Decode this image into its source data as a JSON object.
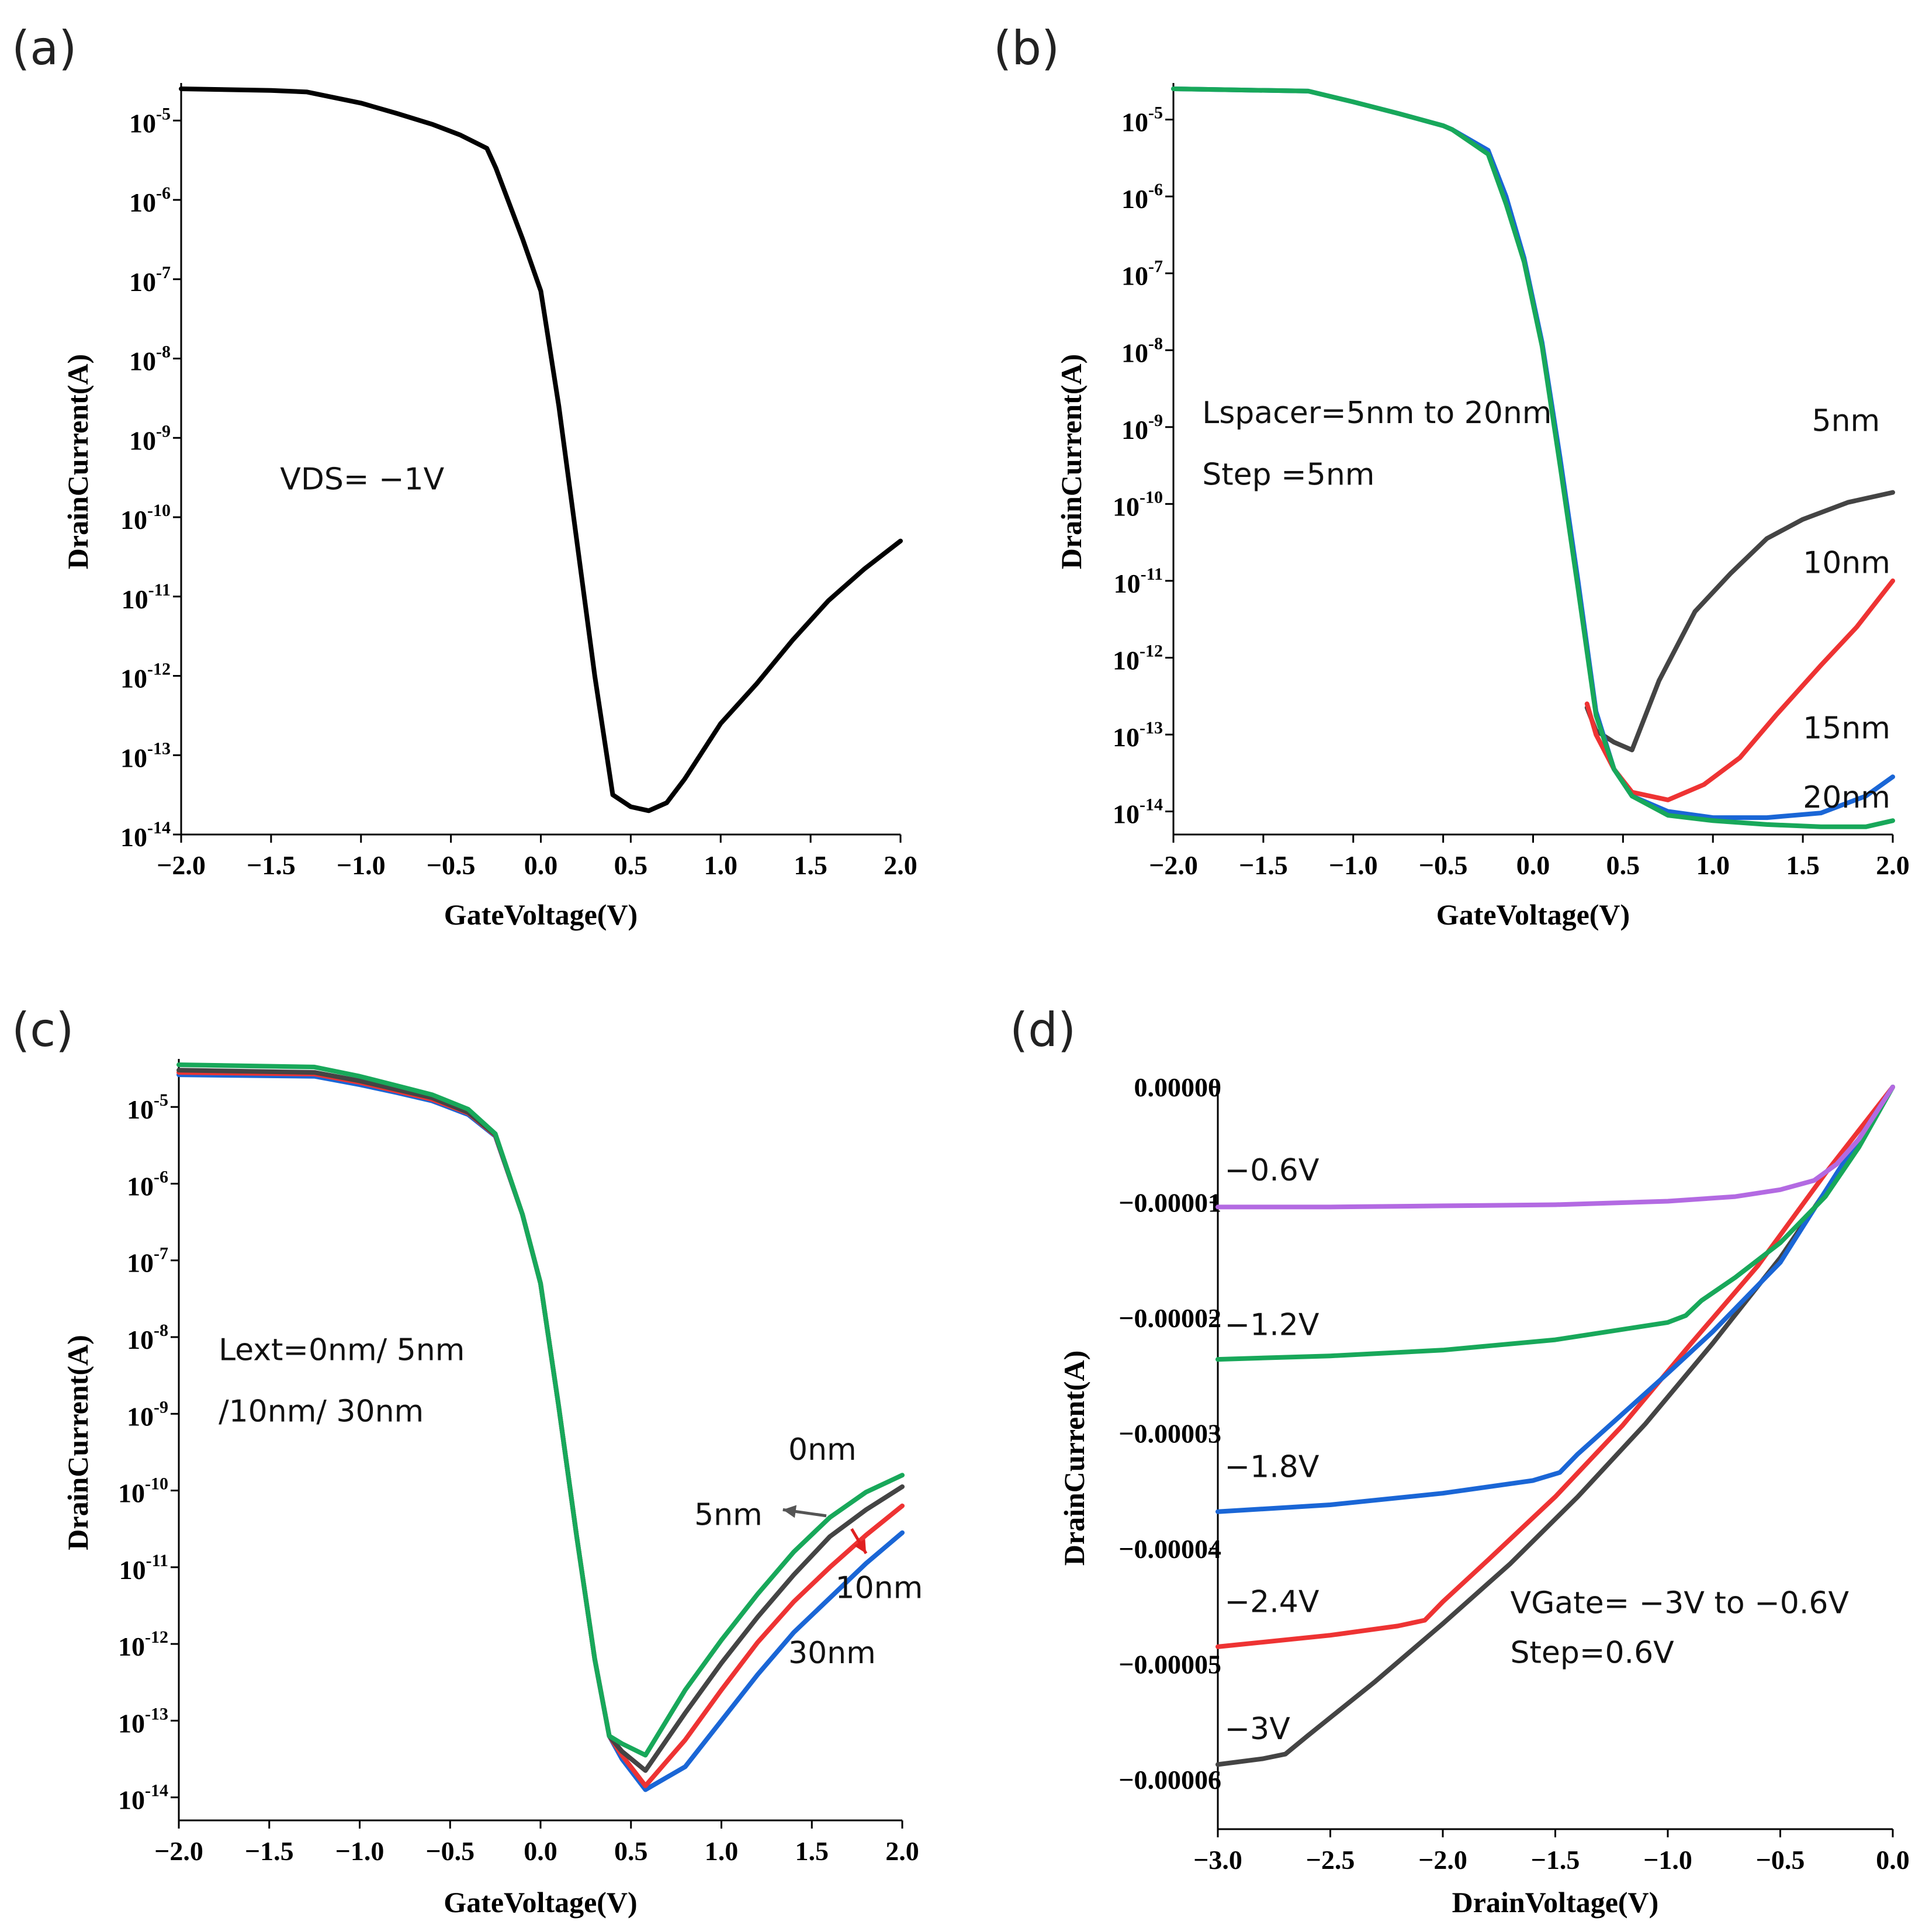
{
  "chart_data": [
    {
      "id": "a",
      "type": "line",
      "panel_label": "(a)",
      "xlabel": "GateVoltage(V)",
      "ylabel": "DrainCurrent(A)",
      "xlim": [
        -2.0,
        2.0
      ],
      "ylog": true,
      "ylim_exp": [
        -14,
        -4.6
      ],
      "xticks": [
        -2.0,
        -1.5,
        -1.0,
        -0.5,
        0.0,
        0.5,
        1.0,
        1.5,
        2.0
      ],
      "xtick_labels": [
        "−2.0",
        "−1.5",
        "−1.0",
        "−0.5",
        "0.0",
        "0.5",
        "1.0",
        "1.5",
        "2.0"
      ],
      "yticks_exp": [
        -5,
        -6,
        -7,
        -8,
        -9,
        -10,
        -11,
        -12,
        -13,
        -14
      ],
      "ytick_labels": [
        "10",
        "10",
        "10",
        "10",
        "10",
        "10",
        "10",
        "10",
        "10",
        "10"
      ],
      "ytick_exp_labels": [
        "-5",
        "-6",
        "-7",
        "-8",
        "-9",
        "-10",
        "-11",
        "-12",
        "-13",
        "-14"
      ],
      "annotations": [
        {
          "text": "VDS= −1V",
          "x": -1.45,
          "y": -9.65
        }
      ],
      "series": [
        {
          "name": "VDS=-1V",
          "color": "#000000",
          "x": [
            -2.0,
            -1.5,
            -1.3,
            -1.0,
            -0.8,
            -0.6,
            -0.45,
            -0.3,
            -0.25,
            -0.1,
            0.0,
            0.1,
            0.2,
            0.3,
            0.4,
            0.5,
            0.6,
            0.7,
            0.8,
            1.0,
            1.2,
            1.4,
            1.6,
            1.8,
            2.0
          ],
          "y": [
            -4.6,
            -4.62,
            -4.64,
            -4.78,
            -4.91,
            -5.05,
            -5.18,
            -5.35,
            -5.6,
            -6.5,
            -7.15,
            -8.6,
            -10.3,
            -12.0,
            -13.5,
            -13.65,
            -13.7,
            -13.6,
            -13.3,
            -12.6,
            -12.1,
            -11.55,
            -11.05,
            -10.65,
            -10.3
          ]
        }
      ]
    },
    {
      "id": "b",
      "type": "line",
      "panel_label": "(b)",
      "xlabel": "GateVoltage(V)",
      "ylabel": "DrainCurrent(A)",
      "xlim": [
        -2.0,
        2.0
      ],
      "ylog": true,
      "ylim_exp": [
        -14.3,
        -4.6
      ],
      "xticks": [
        -2.0,
        -1.5,
        -1.0,
        -0.5,
        0.0,
        0.5,
        1.0,
        1.5,
        2.0
      ],
      "xtick_labels": [
        "−2.0",
        "−1.5",
        "−1.0",
        "−0.5",
        "0.0",
        "0.5",
        "1.0",
        "1.5",
        "2.0"
      ],
      "yticks_exp": [
        -5,
        -6,
        -7,
        -8,
        -9,
        -10,
        -11,
        -12,
        -13,
        -14
      ],
      "ytick_labels": [
        "10",
        "10",
        "10",
        "10",
        "10",
        "10",
        "10",
        "10",
        "10",
        "10"
      ],
      "ytick_exp_labels": [
        "-5",
        "-6",
        "-7",
        "-8",
        "-9",
        "-10",
        "-11",
        "-12",
        "-13",
        "-14"
      ],
      "annotations": [
        {
          "text": "Lspacer=5nm to 20nm",
          "x": -1.84,
          "y": -8.95
        },
        {
          "text": "Step =5nm",
          "x": -1.84,
          "y": -9.75
        },
        {
          "text": "5nm",
          "x": 1.55,
          "y": -9.05
        },
        {
          "text": "10nm",
          "x": 1.5,
          "y": -10.9
        },
        {
          "text": "15nm",
          "x": 1.5,
          "y": -13.05
        },
        {
          "text": "20nm",
          "x": 1.5,
          "y": -13.95
        }
      ],
      "series": [
        {
          "name": "5nm",
          "color": "#444444",
          "x": [
            0.3,
            0.35,
            0.45,
            0.55,
            0.7,
            0.9,
            1.1,
            1.3,
            1.5,
            1.75,
            2.0
          ],
          "y": [
            -12.65,
            -12.95,
            -13.1,
            -13.2,
            -12.3,
            -11.4,
            -10.9,
            -10.45,
            -10.2,
            -9.98,
            -9.85
          ]
        },
        {
          "name": "10nm",
          "color": "#ee3333",
          "x": [
            0.3,
            0.35,
            0.45,
            0.55,
            0.75,
            0.95,
            1.15,
            1.35,
            1.6,
            1.8,
            2.0
          ],
          "y": [
            -12.6,
            -13.0,
            -13.45,
            -13.75,
            -13.85,
            -13.65,
            -13.3,
            -12.75,
            -12.1,
            -11.6,
            -11.0
          ]
        },
        {
          "name": "15nm",
          "color": "#1a66d6",
          "x": [
            -2.0,
            -1.25,
            -1.0,
            -0.75,
            -0.5,
            -0.45,
            -0.25,
            -0.15,
            -0.05,
            0.05,
            0.15,
            0.25,
            0.35,
            0.45,
            0.55,
            0.75,
            1.0,
            1.3,
            1.6,
            1.85,
            2.0
          ],
          "y": [
            -4.6,
            -4.63,
            -4.77,
            -4.92,
            -5.08,
            -5.13,
            -5.4,
            -6.0,
            -6.8,
            -7.9,
            -9.4,
            -11.0,
            -12.7,
            -13.45,
            -13.8,
            -14.0,
            -14.08,
            -14.08,
            -14.02,
            -13.8,
            -13.55
          ]
        },
        {
          "name": "20nm",
          "color": "#18a85a",
          "x": [
            -2.0,
            -1.25,
            -1.0,
            -0.75,
            -0.5,
            -0.45,
            -0.25,
            -0.15,
            -0.05,
            0.05,
            0.15,
            0.25,
            0.35,
            0.45,
            0.55,
            0.75,
            1.0,
            1.3,
            1.6,
            1.85,
            2.0
          ],
          "y": [
            -4.6,
            -4.63,
            -4.77,
            -4.92,
            -5.08,
            -5.13,
            -5.45,
            -6.1,
            -6.85,
            -7.95,
            -9.5,
            -11.1,
            -12.75,
            -13.45,
            -13.8,
            -14.05,
            -14.12,
            -14.17,
            -14.2,
            -14.2,
            -14.12
          ]
        }
      ]
    },
    {
      "id": "c",
      "type": "line",
      "panel_label": "(c)",
      "xlabel": "GateVoltage(V)",
      "ylabel": "DrainCurrent(A)",
      "xlim": [
        -2.0,
        2.0
      ],
      "ylog": true,
      "ylim_exp": [
        -14.3,
        -4.45
      ],
      "xticks": [
        -2.0,
        -1.5,
        -1.0,
        -0.5,
        0.0,
        0.5,
        1.0,
        1.5,
        2.0
      ],
      "xtick_labels": [
        "−2.0",
        "−1.5",
        "−1.0",
        "−0.5",
        "0.0",
        "0.5",
        "1.0",
        "1.5",
        "2.0"
      ],
      "yticks_exp": [
        -5,
        -6,
        -7,
        -8,
        -9,
        -10,
        -11,
        -12,
        -13,
        -14
      ],
      "ytick_labels": [
        "10",
        "10",
        "10",
        "10",
        "10",
        "10",
        "10",
        "10",
        "10",
        "10"
      ],
      "ytick_exp_labels": [
        "-5",
        "-6",
        "-7",
        "-8",
        "-9",
        "-10",
        "-11",
        "-12",
        "-13",
        "-14"
      ],
      "annotations": [
        {
          "text": "Lext=0nm/ 5nm",
          "x": -1.78,
          "y": -8.3
        },
        {
          "text": "/10nm/ 30nm",
          "x": -1.78,
          "y": -9.1
        },
        {
          "text": "0nm",
          "x": 1.37,
          "y": -9.6
        },
        {
          "text": "5nm",
          "x": 0.85,
          "y": -10.45
        },
        {
          "text": "10nm",
          "x": 1.63,
          "y": -11.4
        },
        {
          "text": "30nm",
          "x": 1.37,
          "y": -12.25
        }
      ],
      "arrows": [
        {
          "color": "#555555",
          "from": [
            1.58,
            -10.33
          ],
          "to": [
            1.34,
            -10.25
          ]
        },
        {
          "color": "#e02020",
          "from": [
            1.72,
            -10.5
          ],
          "to": [
            1.8,
            -10.82
          ]
        }
      ],
      "series": [
        {
          "name": "30nm",
          "color": "#1a66d6",
          "x": [
            -2.0,
            -1.25,
            -1.0,
            -0.8,
            -0.6,
            -0.4,
            -0.25,
            -0.1,
            0.0,
            0.1,
            0.2,
            0.3,
            0.38,
            0.45,
            0.58,
            0.8,
            1.0,
            1.2,
            1.4,
            1.6,
            1.8,
            2.0
          ],
          "y": [
            -4.58,
            -4.6,
            -4.71,
            -4.81,
            -4.92,
            -5.1,
            -5.38,
            -6.4,
            -7.3,
            -8.9,
            -10.6,
            -12.2,
            -13.2,
            -13.5,
            -13.9,
            -13.6,
            -13.0,
            -12.4,
            -11.85,
            -11.4,
            -10.95,
            -10.55
          ]
        },
        {
          "name": "10nm",
          "color": "#ee3333",
          "x": [
            -2.0,
            -1.25,
            -1.0,
            -0.8,
            -0.6,
            -0.4,
            -0.25,
            -0.1,
            0.0,
            0.1,
            0.2,
            0.3,
            0.38,
            0.45,
            0.58,
            0.8,
            1.0,
            1.2,
            1.4,
            1.6,
            1.8,
            2.0
          ],
          "y": [
            -4.55,
            -4.57,
            -4.68,
            -4.79,
            -4.9,
            -5.08,
            -5.37,
            -6.4,
            -7.3,
            -8.9,
            -10.6,
            -12.2,
            -13.2,
            -13.45,
            -13.85,
            -13.25,
            -12.6,
            -11.98,
            -11.45,
            -11.0,
            -10.58,
            -10.2
          ]
        },
        {
          "name": "5nm",
          "color": "#444444",
          "x": [
            -2.0,
            -1.25,
            -1.0,
            -0.8,
            -0.6,
            -0.4,
            -0.25,
            -0.1,
            0.0,
            0.1,
            0.2,
            0.3,
            0.38,
            0.45,
            0.58,
            0.8,
            1.0,
            1.2,
            1.4,
            1.6,
            1.8,
            2.0
          ],
          "y": [
            -4.52,
            -4.55,
            -4.66,
            -4.77,
            -4.88,
            -5.07,
            -5.36,
            -6.4,
            -7.3,
            -8.9,
            -10.6,
            -12.2,
            -13.2,
            -13.4,
            -13.65,
            -12.9,
            -12.25,
            -11.65,
            -11.1,
            -10.6,
            -10.25,
            -9.95
          ]
        },
        {
          "name": "0nm",
          "color": "#18a85a",
          "x": [
            -2.0,
            -1.25,
            -1.0,
            -0.8,
            -0.6,
            -0.4,
            -0.25,
            -0.1,
            0.0,
            0.1,
            0.2,
            0.3,
            0.38,
            0.45,
            0.58,
            0.8,
            1.0,
            1.2,
            1.4,
            1.6,
            1.8,
            2.0
          ],
          "y": [
            -4.45,
            -4.48,
            -4.6,
            -4.72,
            -4.84,
            -5.03,
            -5.35,
            -6.4,
            -7.3,
            -8.9,
            -10.6,
            -12.2,
            -13.2,
            -13.3,
            -13.45,
            -12.6,
            -11.95,
            -11.35,
            -10.8,
            -10.35,
            -10.02,
            -9.8
          ]
        }
      ]
    },
    {
      "id": "d",
      "type": "line",
      "panel_label": "(d)",
      "xlabel": "DrainVoltage(V)",
      "ylabel": "DrainCurrent(A)",
      "xlim": [
        -3.0,
        0.0
      ],
      "ylog": false,
      "ylim": [
        -6.43e-05,
        0.0
      ],
      "xticks": [
        -3.0,
        -2.5,
        -2.0,
        -1.5,
        -1.0,
        -0.5,
        0.0
      ],
      "xtick_labels": [
        "−3.0",
        "−2.5",
        "−2.0",
        "−1.5",
        "−1.0",
        "−0.5",
        "0.0"
      ],
      "yticks": [
        0.0,
        -1e-05,
        -2e-05,
        -3e-05,
        -4e-05,
        -5e-05,
        -6e-05
      ],
      "ytick_labels": [
        "0.00000",
        "−0.00001",
        "−0.00002",
        "−0.00003",
        "−0.00004",
        "−0.00005",
        "−0.00006"
      ],
      "annotations": [
        {
          "text": "−0.6V",
          "x": -2.97,
          "y": -8.1e-06
        },
        {
          "text": "−1.2V",
          "x": -2.97,
          "y": -2.15e-05
        },
        {
          "text": "−1.8V",
          "x": -2.97,
          "y": -3.38e-05
        },
        {
          "text": "−2.4V",
          "x": -2.97,
          "y": -4.55e-05
        },
        {
          "text": "−3V",
          "x": -2.97,
          "y": -5.65e-05
        },
        {
          "text": "VGate= −3V to −0.6V",
          "x": -1.7,
          "y": -4.56e-05
        },
        {
          "text": "Step=0.6V",
          "x": -1.7,
          "y": -4.99e-05
        }
      ],
      "series": [
        {
          "name": "-3V",
          "color": "#444444",
          "x": [
            -3.0,
            -2.8,
            -2.7,
            -2.6,
            -2.3,
            -2.0,
            -1.7,
            -1.4,
            -1.1,
            -0.8,
            -0.5,
            -0.2,
            0.0
          ],
          "y": [
            -5.87e-05,
            -5.82e-05,
            -5.78e-05,
            -5.62e-05,
            -5.15e-05,
            -4.65e-05,
            -4.13e-05,
            -3.55e-05,
            -2.92e-05,
            -2.22e-05,
            -1.48e-05,
            -6.2e-06,
            0.0
          ]
        },
        {
          "name": "-2.4V",
          "color": "#ee3333",
          "x": [
            -3.0,
            -2.5,
            -2.2,
            -2.08,
            -2.0,
            -1.8,
            -1.5,
            -1.2,
            -0.9,
            -0.6,
            -0.3,
            0.0
          ],
          "y": [
            -4.85e-05,
            -4.75e-05,
            -4.67e-05,
            -4.62e-05,
            -4.46e-05,
            -4.1e-05,
            -3.55e-05,
            -2.93e-05,
            -2.23e-05,
            -1.55e-05,
            -7.5e-06,
            0.0
          ]
        },
        {
          "name": "-1.8V",
          "color": "#1a66d6",
          "x": [
            -3.0,
            -2.5,
            -2.0,
            -1.6,
            -1.48,
            -1.4,
            -1.2,
            -1.0,
            -0.8,
            -0.5,
            -0.25,
            0.0
          ],
          "y": [
            -3.68e-05,
            -3.62e-05,
            -3.52e-05,
            -3.41e-05,
            -3.34e-05,
            -3.18e-05,
            -2.83e-05,
            -2.48e-05,
            -2.12e-05,
            -1.52e-05,
            -7.5e-06,
            0.0
          ]
        },
        {
          "name": "-1.2V",
          "color": "#18a85a",
          "x": [
            -3.0,
            -2.5,
            -2.0,
            -1.5,
            -1.0,
            -0.92,
            -0.85,
            -0.7,
            -0.5,
            -0.3,
            -0.15,
            0.0
          ],
          "y": [
            -2.36e-05,
            -2.33e-05,
            -2.28e-05,
            -2.19e-05,
            -2.04e-05,
            -1.98e-05,
            -1.85e-05,
            -1.65e-05,
            -1.35e-05,
            -9.5e-06,
            -5.2e-06,
            0.0
          ]
        },
        {
          "name": "-0.6V",
          "color": "#b36ae2",
          "x": [
            -3.0,
            -2.5,
            -2.0,
            -1.5,
            -1.0,
            -0.7,
            -0.5,
            -0.35,
            -0.25,
            -0.15,
            -0.05,
            0.0
          ],
          "y": [
            -1.04e-05,
            -1.04e-05,
            -1.03e-05,
            -1.02e-05,
            -9.9e-06,
            -9.5e-06,
            -8.9e-06,
            -8.1e-06,
            -6.7e-06,
            -4.5e-06,
            -1.5e-06,
            0.0
          ]
        }
      ]
    }
  ]
}
